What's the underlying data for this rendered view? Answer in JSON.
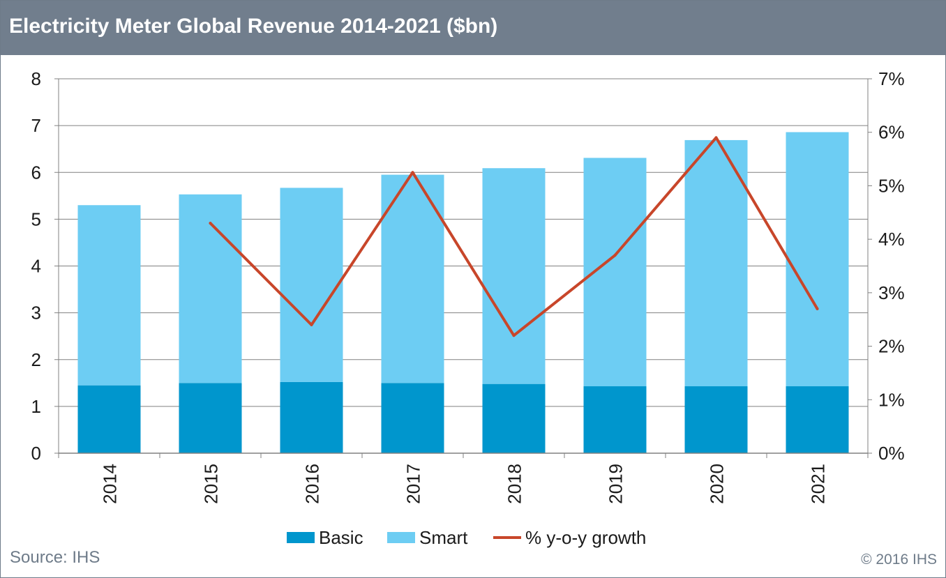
{
  "header": {
    "title": "Electricity Meter Global Revenue 2014-2021 ($bn)"
  },
  "footer": {
    "source": "Source: IHS",
    "copyright": "© 2016 IHS"
  },
  "colors": {
    "header_bg": "#717e8d",
    "basic": "#0096cd",
    "smart": "#6dcdf3",
    "growth_line": "#c8462a",
    "grid": "#808080",
    "footer_text": "#6e7b89"
  },
  "legend": {
    "basic_label": "Basic",
    "smart_label": "Smart",
    "growth_label": "% y-o-y growth"
  },
  "chart_data": {
    "type": "bar",
    "stacked": true,
    "title": "Electricity Meter Global Revenue 2014-2021 ($bn)",
    "categories": [
      "2014",
      "2015",
      "2016",
      "2017",
      "2018",
      "2019",
      "2020",
      "2021"
    ],
    "series": [
      {
        "name": "Basic",
        "type": "bar",
        "axis": "left",
        "values": [
          1.45,
          1.5,
          1.52,
          1.5,
          1.48,
          1.43,
          1.43,
          1.43
        ]
      },
      {
        "name": "Smart",
        "type": "bar",
        "axis": "left",
        "values": [
          3.85,
          4.03,
          4.15,
          4.45,
          4.61,
          4.88,
          5.26,
          5.43
        ]
      },
      {
        "name": "% y-o-y growth",
        "type": "line",
        "axis": "right",
        "values": [
          null,
          4.3,
          2.4,
          5.25,
          2.2,
          3.7,
          5.9,
          2.7
        ]
      }
    ],
    "y_left": {
      "ylim": [
        0,
        8
      ],
      "ticks": [
        "0",
        "1",
        "2",
        "3",
        "4",
        "5",
        "6",
        "7",
        "8"
      ]
    },
    "y_right": {
      "ylim": [
        0,
        7
      ],
      "ticks": [
        "0%",
        "1%",
        "2%",
        "3%",
        "4%",
        "5%",
        "6%",
        "7%"
      ]
    },
    "grid": true,
    "legend_position": "bottom"
  }
}
